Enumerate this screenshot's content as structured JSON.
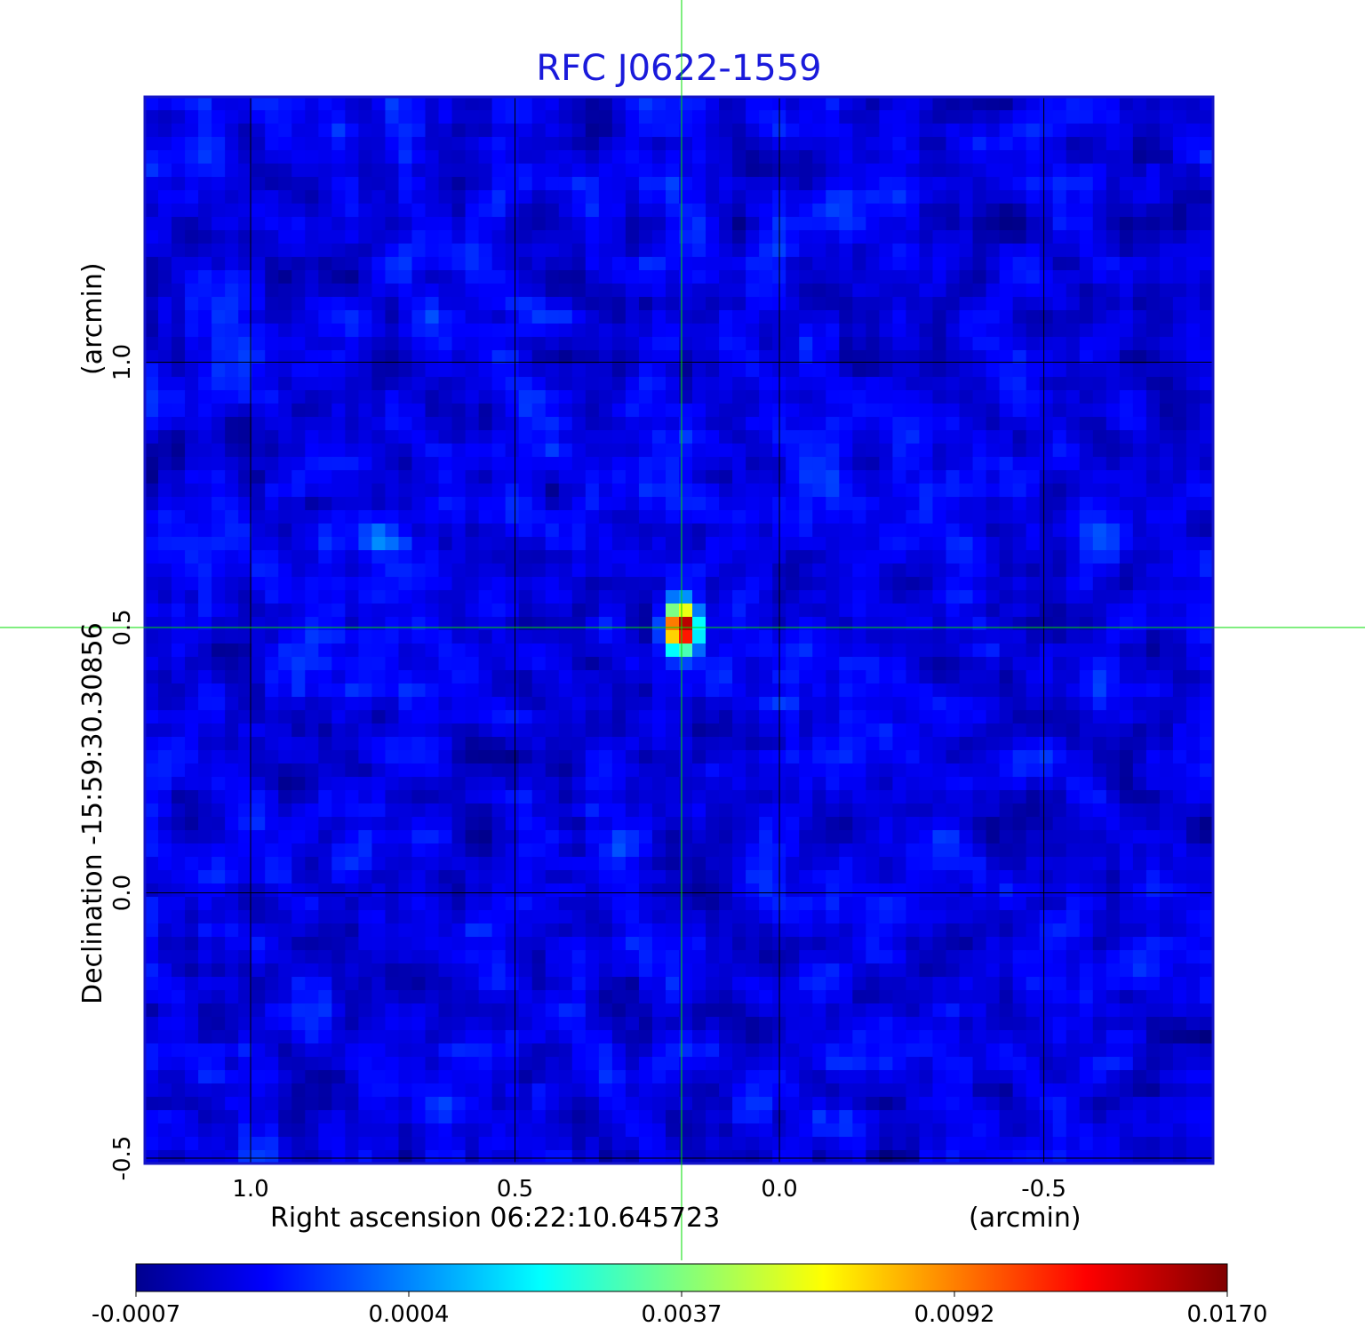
{
  "chart_data": {
    "type": "heatmap",
    "title": "RFC J0622-1559",
    "title_color": "#1a1adb",
    "xlabel": "Right ascension  06:22:10.645723",
    "xunit": "(arcmin)",
    "ylabel": "Declination  -15:59:30.30856",
    "yunit": "(arcmin)",
    "xlim": [
      1.2,
      -0.82
    ],
    "ylim": [
      -0.51,
      1.5
    ],
    "x_ticks": [
      {
        "value": 1.0,
        "label": "1.0"
      },
      {
        "value": 0.5,
        "label": "0.5"
      },
      {
        "value": 0.0,
        "label": "0.0"
      },
      {
        "value": -0.5,
        "label": "-0.5"
      }
    ],
    "y_ticks": [
      {
        "value": 1.0,
        "label": "1.0"
      },
      {
        "value": 0.5,
        "label": "0.5"
      },
      {
        "value": 0.0,
        "label": "0.0"
      },
      {
        "value": -0.5,
        "label": "-0.5"
      }
    ],
    "grid": true,
    "grid_color": "#000000",
    "crosshair": {
      "x": 0.185,
      "y": 0.5,
      "color": "#00dd00"
    },
    "colormap": "jet",
    "colorbar": {
      "orientation": "horizontal",
      "position": "bottom",
      "ticks": [
        "-0.0007",
        "0.0004",
        "0.0037",
        "0.0092",
        "0.0170"
      ]
    },
    "features": [
      {
        "kind": "point-source",
        "x": 0.185,
        "y": 0.5,
        "peak_level": 0.017
      },
      {
        "kind": "faint-blob",
        "x": 0.77,
        "y": 0.67,
        "peak_level": 0.0004
      }
    ],
    "background_level_range": [
      -0.0007,
      0.0004
    ]
  }
}
